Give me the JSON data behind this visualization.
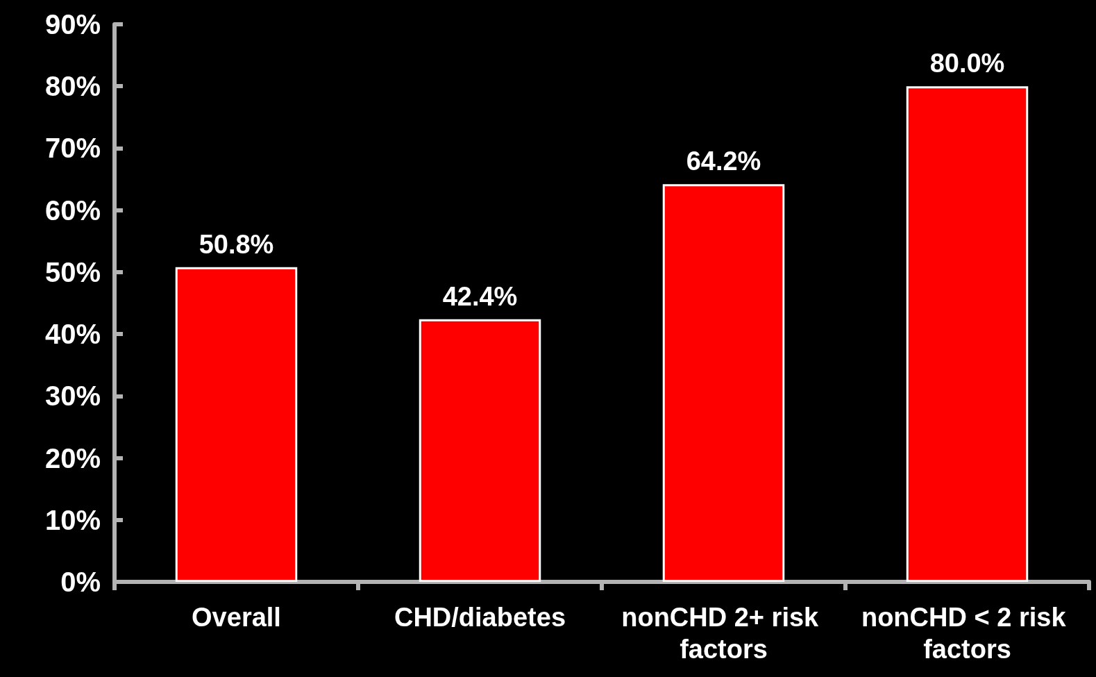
{
  "chart_data": {
    "type": "bar",
    "categories": [
      "Overall",
      "CHD/diabetes",
      "nonCHD 2+ risk factors",
      "nonCHD < 2 risk factors"
    ],
    "values": [
      50.8,
      42.4,
      64.2,
      80.0
    ],
    "color": "#ff0000",
    "value_labels": [
      "50.8%",
      "42.4%",
      "64.2%",
      "80.0%"
    ],
    "ylim": [
      0,
      90
    ],
    "yticks": [
      {
        "value": 0,
        "label": "0%"
      },
      {
        "value": 10,
        "label": "10%"
      },
      {
        "value": 20,
        "label": "20%"
      },
      {
        "value": 30,
        "label": "30%"
      },
      {
        "value": 40,
        "label": "40%"
      },
      {
        "value": 50,
        "label": "50%"
      },
      {
        "value": 60,
        "label": "60%"
      },
      {
        "value": 70,
        "label": "70%"
      },
      {
        "value": 80,
        "label": "80%"
      },
      {
        "value": 90,
        "label": "90%"
      }
    ],
    "grid": false
  }
}
